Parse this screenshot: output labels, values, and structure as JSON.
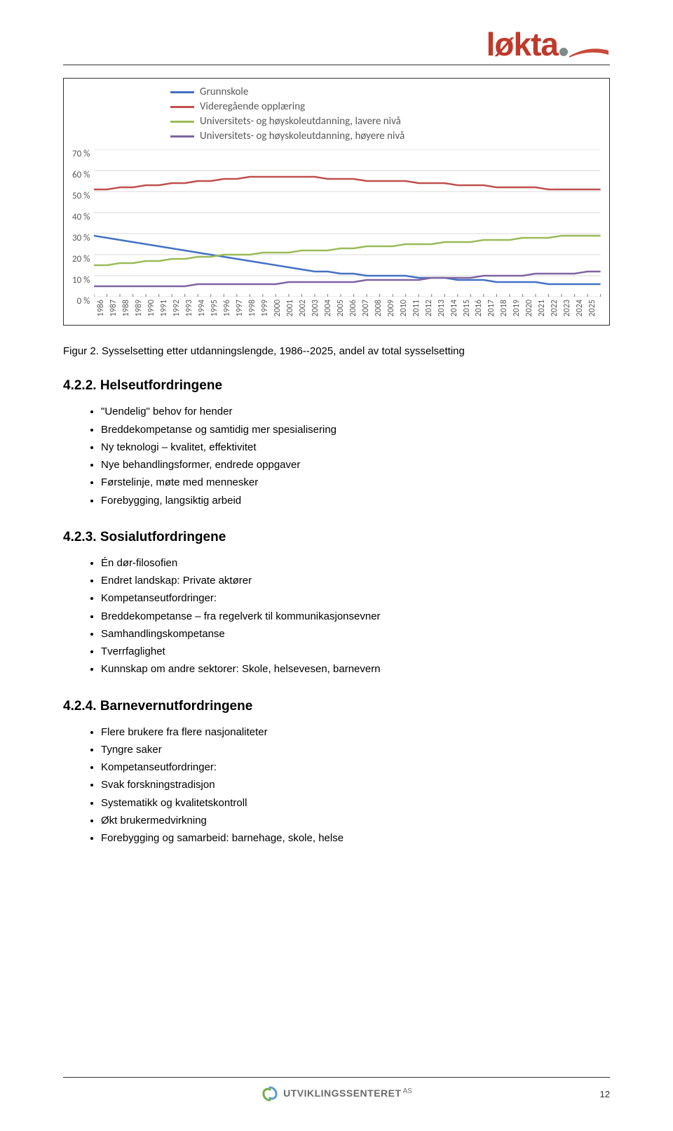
{
  "logo": {
    "text": "løkta",
    "color": "#c0392b",
    "dot_color": "#7d8b8c",
    "swoosh_color": "#c94b3b"
  },
  "chart": {
    "type": "line",
    "background_color": "#ffffff",
    "grid_color": "#d9d9d9",
    "ylim": [
      0,
      70
    ],
    "ytick_step": 10,
    "yticks": [
      "70 %",
      "60 %",
      "50 %",
      "40 %",
      "30 %",
      "20 %",
      "10 %",
      "0 %"
    ],
    "years": [
      "1986",
      "1987",
      "1988",
      "1989",
      "1990",
      "1991",
      "1992",
      "1993",
      "1994",
      "1995",
      "1996",
      "1997",
      "1998",
      "1999",
      "2000",
      "2001",
      "2002",
      "2003",
      "2004",
      "2005",
      "2006",
      "2007",
      "2008",
      "2009",
      "2010",
      "2011",
      "2012",
      "2013",
      "2014",
      "2015",
      "2016",
      "2017",
      "2018",
      "2019",
      "2020",
      "2021",
      "2022",
      "2023",
      "2024",
      "2025"
    ],
    "tick_fontsize": 13,
    "tick_color": "#595959",
    "legend_fontsize": 15,
    "line_width": 2.5,
    "series": [
      {
        "name": "Grunnskole",
        "color": "#4472c4",
        "values": [
          29,
          28,
          27,
          26,
          25,
          24,
          23,
          22,
          21,
          20,
          19,
          18,
          17,
          16,
          15,
          14,
          13,
          12,
          12,
          11,
          11,
          10,
          10,
          10,
          10,
          9,
          9,
          9,
          8,
          8,
          8,
          7,
          7,
          7,
          7,
          6,
          6,
          6,
          6,
          6
        ]
      },
      {
        "name": "Videregående opplæring",
        "color": "#c0504d",
        "values": [
          51,
          51,
          52,
          52,
          53,
          53,
          54,
          54,
          55,
          55,
          56,
          56,
          57,
          57,
          57,
          57,
          57,
          57,
          56,
          56,
          56,
          55,
          55,
          55,
          55,
          54,
          54,
          54,
          53,
          53,
          53,
          52,
          52,
          52,
          52,
          51,
          51,
          51,
          51,
          51
        ]
      },
      {
        "name": "Universitets- og høyskoleutdanning, lavere nivå",
        "color": "#9bbb59",
        "values": [
          15,
          15,
          16,
          16,
          17,
          17,
          18,
          18,
          19,
          19,
          20,
          20,
          20,
          21,
          21,
          21,
          22,
          22,
          22,
          23,
          23,
          24,
          24,
          24,
          25,
          25,
          25,
          26,
          26,
          26,
          27,
          27,
          27,
          28,
          28,
          28,
          29,
          29,
          29,
          29
        ]
      },
      {
        "name": "Universitets- og høyskoleutdanning, høyere nivå",
        "color": "#8064a2",
        "values": [
          5,
          5,
          5,
          5,
          5,
          5,
          5,
          5,
          6,
          6,
          6,
          6,
          6,
          6,
          6,
          7,
          7,
          7,
          7,
          7,
          7,
          8,
          8,
          8,
          8,
          8,
          9,
          9,
          9,
          9,
          10,
          10,
          10,
          10,
          11,
          11,
          11,
          11,
          12,
          12
        ]
      }
    ]
  },
  "caption": "Figur 2. Sysselsetting etter utdanningslengde, 1986--2025, andel av total sysselsetting",
  "sections": [
    {
      "heading": "4.2.2. Helseutfordringene",
      "items": [
        "\"Uendelig\" behov for hender",
        "Breddekompetanse og samtidig mer spesialisering",
        "Ny teknologi – kvalitet, effektivitet",
        "Nye behandlingsformer, endrede oppgaver",
        "Førstelinje, møte med mennesker",
        "Forebygging, langsiktig arbeid"
      ]
    },
    {
      "heading": "4.2.3. Sosialutfordringene",
      "items": [
        "Én dør-filosofien",
        "Endret landskap: Private aktører",
        "Kompetanseutfordringer:",
        "Breddekompetanse – fra regelverk til kommunikasjonsevner",
        "Samhandlingskompetanse",
        "Tverrfaglighet",
        "Kunnskap om andre sektorer: Skole, helsevesen, barnevern"
      ]
    },
    {
      "heading": "4.2.4. Barnevernutfordringene",
      "items": [
        "Flere brukere fra flere nasjonaliteter",
        "Tyngre saker",
        "Kompetanseutfordringer:",
        "Svak forskningstradisjon",
        "Systematikk og kvalitetskontroll",
        "Økt brukermedvirkning",
        "Forebygging og samarbeid: barnehage, skole, helse"
      ]
    }
  ],
  "footer": {
    "logo_text": "UTVIKLINGSSENTERET",
    "logo_suffix": "AS",
    "swirl_colors": [
      "#5b9bd5",
      "#70ad47"
    ],
    "page_number": "12"
  }
}
